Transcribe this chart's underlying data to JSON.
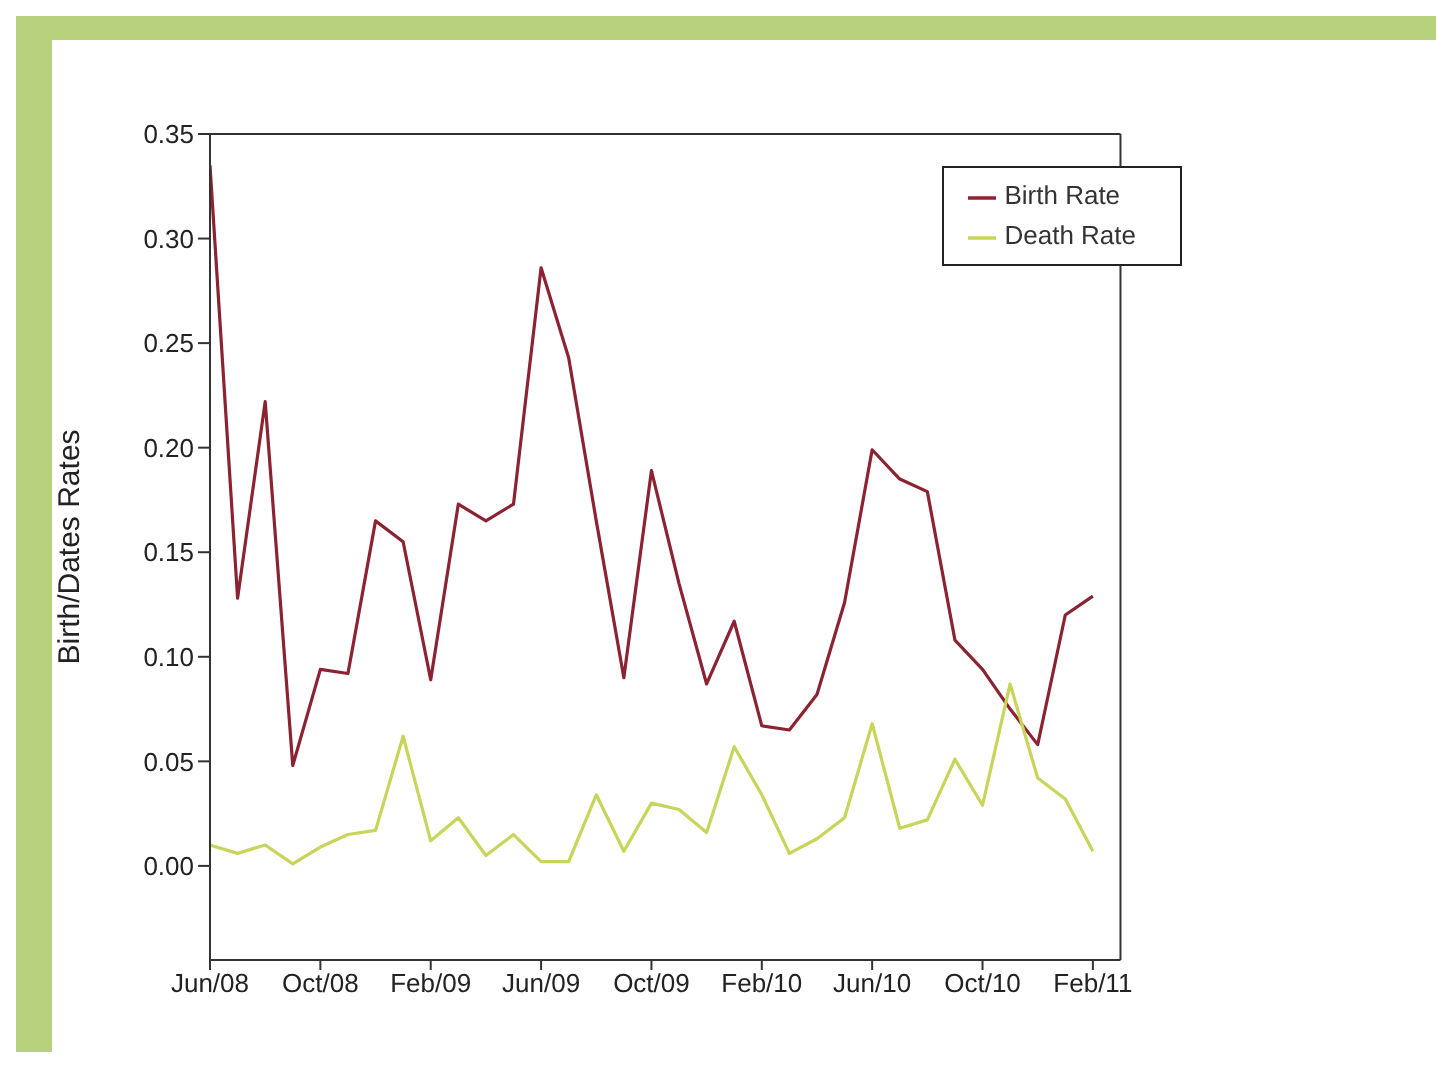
{
  "chart_data": {
    "type": "line",
    "ylabel": "Birth/Dates Rates",
    "x": [
      "2008-06",
      "2008-07",
      "2008-08",
      "2008-09",
      "2008-10",
      "2008-11",
      "2008-12",
      "2009-01",
      "2009-02",
      "2009-03",
      "2009-04",
      "2009-05",
      "2009-06",
      "2009-07",
      "2009-08",
      "2009-09",
      "2009-10",
      "2009-11",
      "2009-12",
      "2010-01",
      "2010-02",
      "2010-03",
      "2010-04",
      "2010-05",
      "2010-06",
      "2010-07",
      "2010-08",
      "2010-09",
      "2010-10",
      "2010-11",
      "2010-12",
      "2011-01",
      "2011-02"
    ],
    "series": [
      {
        "name": "Birth Rate",
        "color": "#8b2333",
        "values": [
          0.335,
          0.128,
          0.222,
          0.048,
          0.094,
          0.092,
          0.165,
          0.155,
          0.089,
          0.173,
          0.165,
          0.173,
          0.286,
          0.243,
          0.165,
          0.09,
          0.189,
          0.135,
          0.087,
          0.117,
          0.067,
          0.065,
          0.082,
          0.126,
          0.199,
          0.185,
          0.179,
          0.108,
          0.094,
          0.075,
          0.058,
          0.12,
          0.129
        ]
      },
      {
        "name": "Death Rate",
        "color": "#c8d45a",
        "values": [
          0.01,
          0.006,
          0.01,
          0.001,
          0.009,
          0.015,
          0.017,
          0.062,
          0.012,
          0.023,
          0.005,
          0.015,
          0.002,
          0.002,
          0.034,
          0.007,
          0.03,
          0.027,
          0.016,
          0.057,
          0.034,
          0.006,
          0.013,
          0.023,
          0.068,
          0.018,
          0.022,
          0.051,
          0.029,
          0.087,
          0.042,
          0.032,
          0.007
        ]
      }
    ],
    "xlim": [
      "2008-06",
      "2011-03"
    ],
    "xticks": [
      {
        "value": "2008-06",
        "label": "Jun/08"
      },
      {
        "value": "2008-10",
        "label": "Oct/08"
      },
      {
        "value": "2009-02",
        "label": "Feb/09"
      },
      {
        "value": "2009-06",
        "label": "Jun/09"
      },
      {
        "value": "2009-10",
        "label": "Oct/09"
      },
      {
        "value": "2010-02",
        "label": "Feb/10"
      },
      {
        "value": "2010-06",
        "label": "Jun/10"
      },
      {
        "value": "2010-10",
        "label": "Oct/10"
      },
      {
        "value": "2011-02",
        "label": "Feb/11"
      }
    ],
    "ylim": [
      -0.045,
      0.35
    ],
    "yticks": [
      {
        "value": 0,
        "label": "0.00"
      },
      {
        "value": 0.05,
        "label": "0.05"
      },
      {
        "value": 0.1,
        "label": "0.10"
      },
      {
        "value": 0.15,
        "label": "0.15"
      },
      {
        "value": 0.2,
        "label": "0.20"
      },
      {
        "value": 0.25,
        "label": "0.25"
      },
      {
        "value": 0.3,
        "label": "0.30"
      },
      {
        "value": 0.35,
        "label": "0.35"
      }
    ],
    "legend": "top right",
    "marker": "none",
    "line_style": "solid"
  }
}
